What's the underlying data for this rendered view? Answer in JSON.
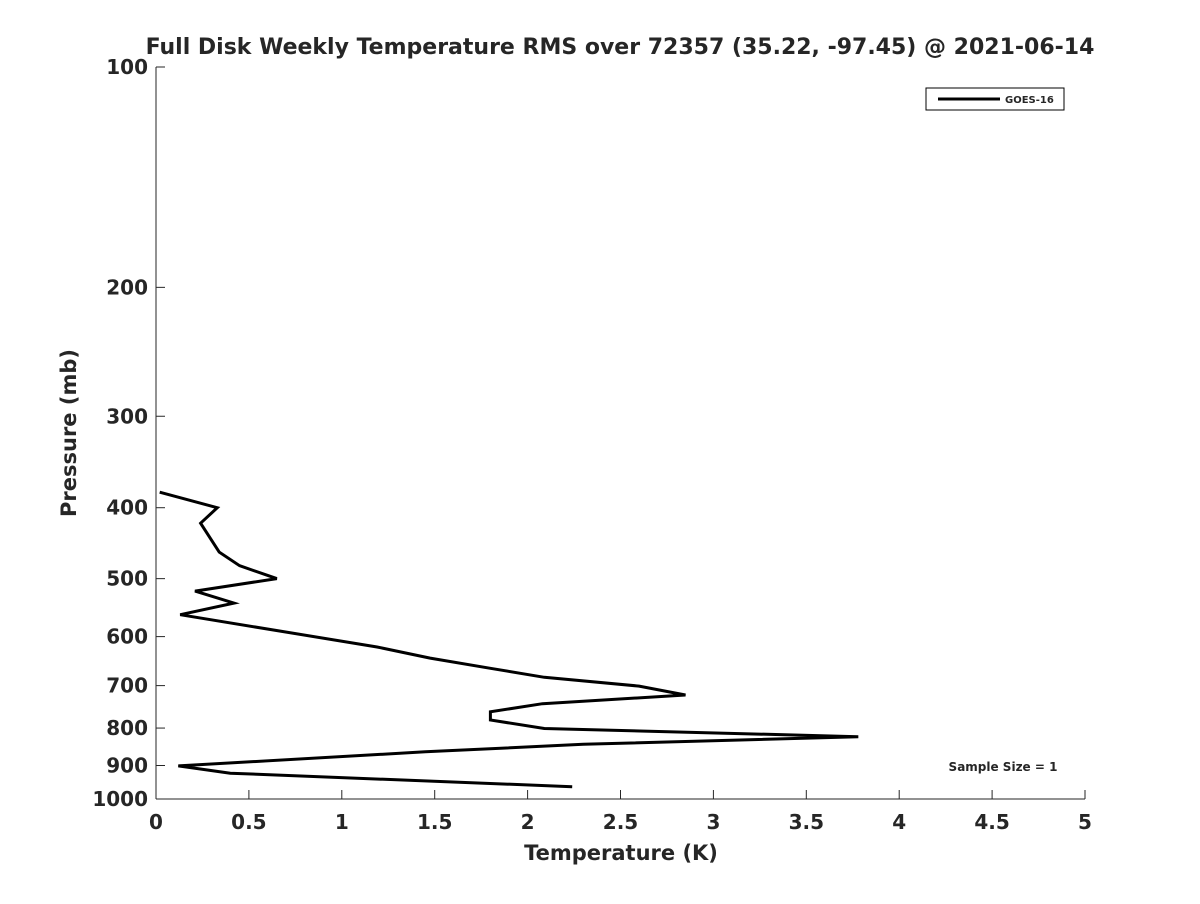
{
  "chart_data": {
    "type": "line",
    "title": "Full Disk Weekly Temperature RMS over 72357 (35.22, -97.45) @ 2021-06-14",
    "xlabel": "Temperature (K)",
    "ylabel": "Pressure (mb)",
    "xlim": [
      0,
      5
    ],
    "ylim": [
      100,
      1000
    ],
    "yscale": "log",
    "yreversed": true,
    "xticks": [
      "0",
      "0.5",
      "1",
      "1.5",
      "2",
      "2.5",
      "3",
      "3.5",
      "4",
      "4.5",
      "5"
    ],
    "yticks": [
      "100",
      "200",
      "300",
      "400",
      "500",
      "600",
      "700",
      "800",
      "900",
      "1000"
    ],
    "legend": {
      "placement": "top-right",
      "entries": [
        "GOES-16"
      ]
    },
    "annotation": "Sample Size = 1",
    "series": [
      {
        "name": "GOES-16",
        "color": "#000000",
        "temperature": [
          0.02,
          0.33,
          0.24,
          0.34,
          0.45,
          0.65,
          0.21,
          0.42,
          0.13,
          1.19,
          1.475,
          1.8,
          2.09,
          2.6,
          2.85,
          2.08,
          1.8,
          1.8,
          2.09,
          3.78,
          2.3,
          1.45,
          0.12,
          0.4,
          2.24
        ],
        "pressure": [
          381,
          400,
          420,
          460,
          480,
          500,
          520,
          540,
          560,
          620,
          642,
          663,
          682,
          701,
          721,
          741,
          760,
          780,
          801,
          822,
          842,
          862,
          901,
          922,
          962
        ]
      }
    ]
  }
}
